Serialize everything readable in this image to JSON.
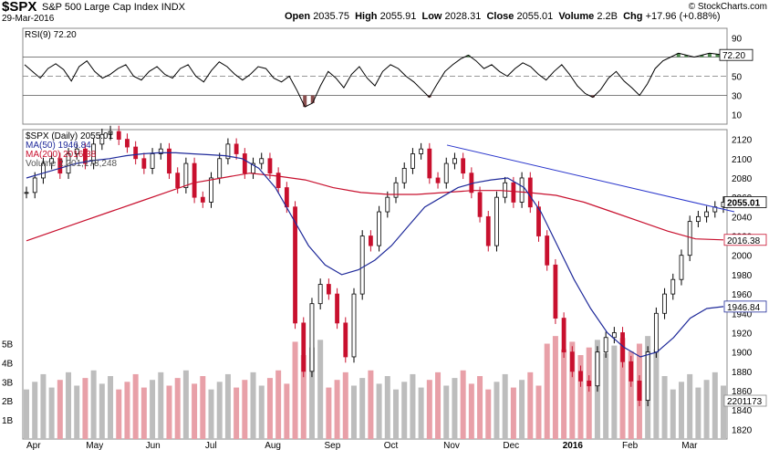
{
  "header": {
    "symbol": "$SPX",
    "description": "S&P 500 Large Cap Index",
    "exchange": "INDX",
    "date": "29-Mar-2016",
    "credit": "© StockCharts.com",
    "open_label": "Open",
    "open": "2035.75",
    "high_label": "High",
    "high": "2055.91",
    "low_label": "Low",
    "low": "2028.31",
    "close_label": "Close",
    "close": "2055.01",
    "volume_label": "Volume",
    "volume": "2.2B",
    "chg_label": "Chg",
    "chg": "+17.96 (+0.88%)",
    "chg_arrow": "▲"
  },
  "colors": {
    "up": "#000000",
    "down": "#c8102e",
    "ma50": "#1f2a9a",
    "ma200": "#c8102e",
    "trendline": "#2a36cc",
    "vol_up": "#bdbdbd",
    "vol_down": "#e8a0a8",
    "rsi_over": "#4f8a4f",
    "rsi_under": "#8a4f4f"
  },
  "chart_data": [
    {
      "type": "line",
      "title": "RSI(9) 72.20",
      "series": [
        {
          "name": "RSI(9)",
          "values": [
            62,
            55,
            48,
            58,
            63,
            57,
            45,
            60,
            66,
            55,
            48,
            52,
            58,
            62,
            50,
            46,
            55,
            60,
            52,
            48,
            58,
            62,
            50,
            44,
            56,
            65,
            60,
            52,
            46,
            52,
            60,
            58,
            48,
            44,
            50,
            35,
            18,
            22,
            40,
            55,
            48,
            38,
            52,
            60,
            48,
            40,
            55,
            62,
            58,
            50,
            44,
            36,
            28,
            42,
            55,
            62,
            68,
            72,
            66,
            58,
            62,
            55,
            50,
            58,
            64,
            60,
            52,
            46,
            55,
            62,
            52,
            40,
            32,
            28,
            36,
            48,
            55,
            45,
            38,
            30,
            42,
            58,
            66,
            70,
            74,
            72,
            70,
            72,
            74,
            73,
            72
          ]
        }
      ],
      "ylim": [
        0,
        100
      ],
      "y_ticks": [
        10,
        30,
        50,
        70,
        90
      ],
      "last_value": "72.20"
    },
    {
      "type": "line",
      "legend": [
        "$SPX (Daily) 2055.01",
        "MA(50) 1946.84",
        "MA(200) 2016.38",
        "Volume 2,201,173,248"
      ],
      "x_labels": [
        "Apr",
        "May",
        "Jun",
        "Jul",
        "Aug",
        "Sep",
        "Oct",
        "Nov",
        "Dec",
        "2016",
        "Feb",
        "Mar"
      ],
      "ylim": [
        1810,
        2130
      ],
      "y_ticks": [
        1820,
        1840,
        1860,
        1880,
        1900,
        1920,
        1940,
        1960,
        1980,
        2000,
        2020,
        2040,
        2060,
        2080,
        2100,
        2120
      ],
      "series": [
        {
          "name": "$SPX (Daily)",
          "values": [
            2065,
            2080,
            2095,
            2100,
            2085,
            2105,
            2110,
            2095,
            2115,
            2125,
            2128,
            2120,
            2112,
            2100,
            2090,
            2105,
            2110,
            2085,
            2070,
            2095,
            2060,
            2055,
            2080,
            2100,
            2115,
            2105,
            2085,
            2095,
            2100,
            2085,
            2070,
            2050,
            1930,
            1880,
            1950,
            1970,
            1960,
            1930,
            1895,
            1960,
            2020,
            2010,
            2045,
            2060,
            2075,
            2090,
            2105,
            2110,
            2080,
            2075,
            2095,
            2100,
            2085,
            2065,
            2040,
            2010,
            2060,
            2075,
            2055,
            2080,
            2050,
            2020,
            1990,
            1935,
            1900,
            1880,
            1870,
            1865,
            1900,
            1915,
            1920,
            1890,
            1870,
            1850,
            1900,
            1940,
            1960,
            1975,
            2000,
            2035,
            2040,
            2045,
            2050,
            2055
          ]
        },
        {
          "name": "MA(50)",
          "values": [
            2080,
            2085,
            2090,
            2095,
            2098,
            2100,
            2103,
            2105,
            2106,
            2106,
            2105,
            2104,
            2103,
            2100,
            2090,
            2070,
            2040,
            2010,
            1990,
            1980,
            1985,
            1995,
            2010,
            2030,
            2050,
            2060,
            2070,
            2075,
            2078,
            2080,
            2070,
            2045,
            2010,
            1975,
            1945,
            1920,
            1905,
            1895,
            1900,
            1915,
            1935,
            1945,
            1947
          ]
        },
        {
          "name": "MA(200)",
          "values": [
            2015,
            2025,
            2035,
            2045,
            2055,
            2065,
            2075,
            2080,
            2085,
            2082,
            2078,
            2070,
            2065,
            2063,
            2063,
            2065,
            2067,
            2067,
            2065,
            2062,
            2055,
            2045,
            2035,
            2025,
            2017,
            2016
          ]
        }
      ],
      "trendline": [
        [
          2114,
          2055
        ]
      ],
      "last_values": {
        "close": "2055.01",
        "ma200": "2016.38",
        "ma50": "1946.84",
        "volume": "2201173"
      }
    },
    {
      "type": "bar",
      "name": "Volume",
      "y_ticks": [
        "1B",
        "2B",
        "3B",
        "4B",
        "5B"
      ]
    }
  ]
}
